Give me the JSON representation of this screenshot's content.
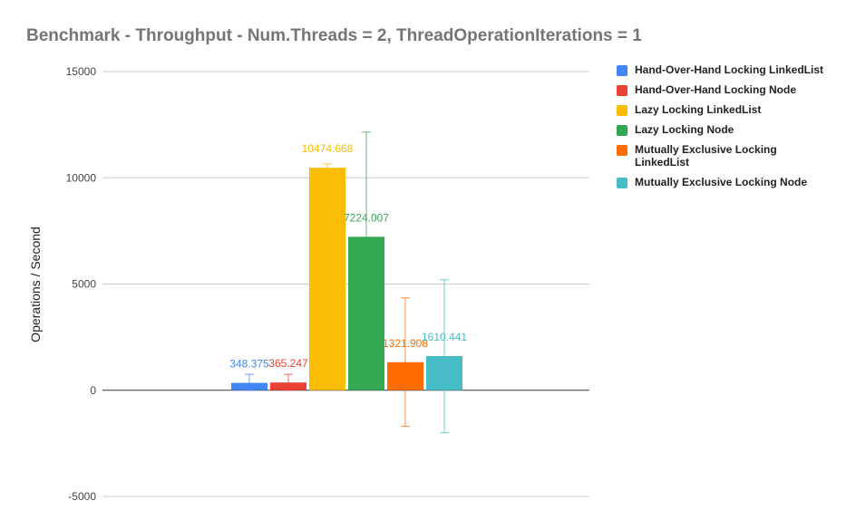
{
  "chart_data": {
    "type": "bar",
    "title": "Benchmark - Throughput - Num.Threads = 2, ThreadOperationIterations = 1",
    "xlabel": "",
    "ylabel": "Operations / Second",
    "ylim": [
      -5000,
      15000
    ],
    "yticks": [
      15000,
      10000,
      5000,
      0,
      -5000
    ],
    "grid": true,
    "legend_position": "right",
    "series": [
      {
        "name": "Hand-Over-Hand Locking LinkedList",
        "value": 348.375,
        "label": "348.375",
        "error_low": 0,
        "error_high": 750,
        "color": "#4285f4"
      },
      {
        "name": "Hand-Over-Hand Locking Node",
        "value": 365.247,
        "label": "365.247",
        "error_low": 0,
        "error_high": 750,
        "color": "#ea4335"
      },
      {
        "name": "Lazy Locking LinkedList",
        "value": 10474.668,
        "label": "10474.668",
        "error_low": 10300,
        "error_high": 10650,
        "color": "#fbbc04"
      },
      {
        "name": "Lazy Locking Node",
        "value": 7224.007,
        "label": "7224.007",
        "error_low": 2300,
        "error_high": 12150,
        "color": "#34a853"
      },
      {
        "name": "Mutually Exclusive Locking LinkedList",
        "value": 1321.908,
        "label": "1321.908",
        "error_low": -1700,
        "error_high": 4350,
        "color": "#ff6d01"
      },
      {
        "name": "Mutually Exclusive Locking Node",
        "value": 1610.441,
        "label": "1610.441",
        "error_low": -2000,
        "error_high": 5200,
        "color": "#46bdc6"
      }
    ]
  }
}
